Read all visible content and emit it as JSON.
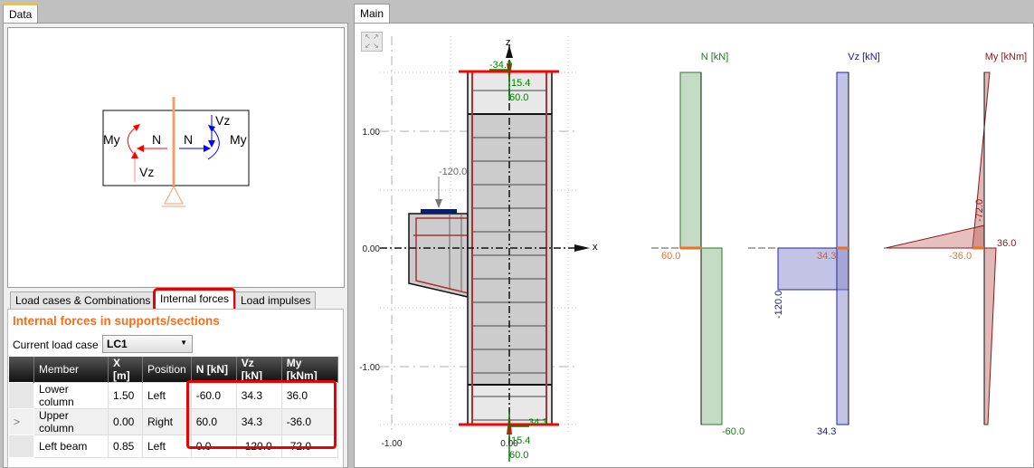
{
  "tabs": {
    "data": "Data",
    "main": "Main"
  },
  "lower_tabs": [
    {
      "label": "Load cases & Combinations"
    },
    {
      "label": "Internal forces",
      "active": true
    },
    {
      "label": "Load impulses"
    }
  ],
  "section_title": "Internal forces in supports/sections",
  "load_case": {
    "label": "Current load case",
    "value": "LC1"
  },
  "table": {
    "columns": [
      "Member",
      "X [m]",
      "Position",
      "N [kN]",
      "Vz [kN]",
      "My [kNm]"
    ],
    "rows": [
      {
        "marker": "",
        "cells": [
          "Lower column",
          "1.50",
          "Left",
          "-60.0",
          "34.3",
          "36.0"
        ]
      },
      {
        "marker": ">",
        "cells": [
          "Upper column",
          "0.00",
          "Right",
          "60.0",
          "34.3",
          "-36.0"
        ]
      },
      {
        "marker": "",
        "cells": [
          "Left beam",
          "0.85",
          "Left",
          "0.0",
          "-120.0",
          "-72.0"
        ]
      }
    ]
  },
  "legend_diagram": {
    "labels": [
      "My",
      "N",
      "N",
      "My",
      "Vz",
      "Vz"
    ]
  },
  "drawing": {
    "axis_labels": {
      "z": "z",
      "x": "x"
    },
    "ticks_y": [
      "1.00",
      "0.00",
      "-1.00"
    ],
    "ticks_x": [
      "-1.00",
      "0.00"
    ],
    "load_label": "-120.0",
    "top_labels": [
      "-34.3",
      "15.4",
      "60.0"
    ],
    "bottom_labels": [
      "34.3",
      "15.4",
      "60.0"
    ]
  },
  "diagrams": {
    "N": {
      "title": "N [kN]",
      "labels": [
        "60.0",
        "-60.0"
      ],
      "color": "#1a7a1a"
    },
    "Vz": {
      "title": "Vz [kN]",
      "labels": [
        "34.3",
        "34.3",
        "-120.0"
      ],
      "color": "#1a1a8a"
    },
    "My": {
      "title": "My [kNm]",
      "labels": [
        "36.0",
        "-36.0",
        "-72.0"
      ],
      "color": "#8a1a1a"
    }
  },
  "colors": {
    "accent": "#f07020",
    "highlight": "#e00000"
  }
}
